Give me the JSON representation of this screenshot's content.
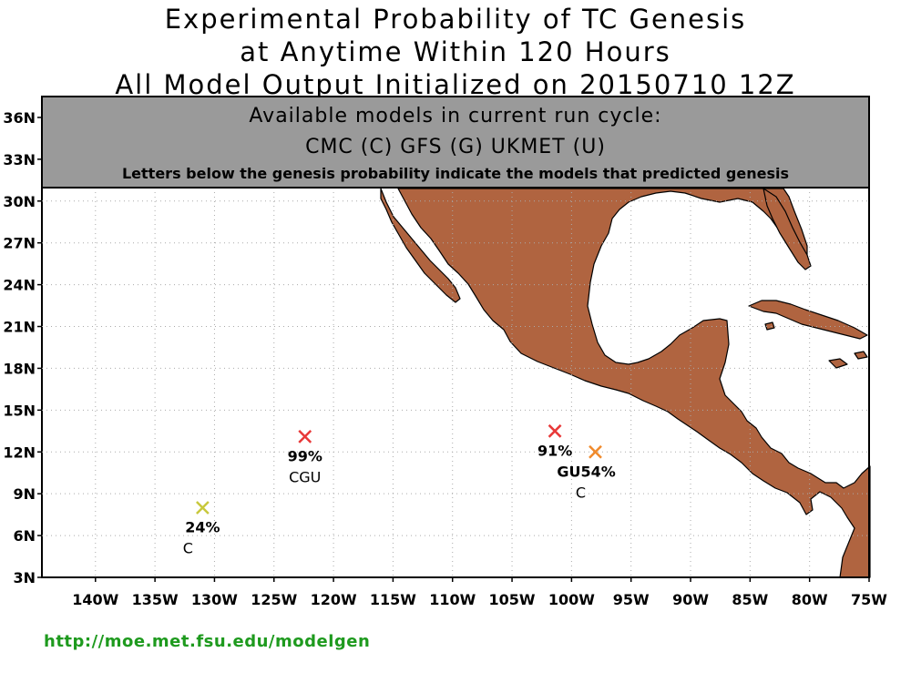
{
  "title": {
    "line1": "Experimental Probability of TC Genesis",
    "line2": "at Anytime Within 120 Hours",
    "line3": "All Model Output Initialized on 20150710 12Z"
  },
  "legend_box": {
    "line1": "Available models in current run cycle:",
    "line2": "CMC (C) GFS (G)  UKMET (U)",
    "line3": "Letters below the genesis probability indicate the models that predicted genesis"
  },
  "axes": {
    "lat_labels": [
      "36N",
      "33N",
      "30N",
      "27N",
      "24N",
      "21N",
      "18N",
      "15N",
      "12N",
      "9N",
      "6N",
      "3N"
    ],
    "lon_labels": [
      "140W",
      "135W",
      "130W",
      "125W",
      "120W",
      "115W",
      "110W",
      "105W",
      "100W",
      "95W",
      "90W",
      "85W",
      "80W",
      "75W"
    ],
    "lon_range": [
      -144.5,
      -75
    ],
    "lat_range": [
      3,
      37.5
    ],
    "grid": true
  },
  "colors": {
    "land": "#b06440",
    "legend_box": "#9a9a9a",
    "url": "#1e9a1e"
  },
  "genesis_points": [
    {
      "lon": -122.4,
      "lat": 13.1,
      "probability": "99%",
      "models": "CGU",
      "color": "#e83838"
    },
    {
      "lon": -101.4,
      "lat": 13.5,
      "probability": "91%",
      "models": "",
      "color": "#e83838"
    },
    {
      "lon": -98.0,
      "lat": 12.0,
      "probability": "54%",
      "models": "C",
      "prefix": "GU",
      "color": "#f08a2c"
    },
    {
      "lon": -131.0,
      "lat": 8.0,
      "probability": "24%",
      "models": "C",
      "color": "#c8c83c"
    }
  ],
  "footer": {
    "url": "http://moe.met.fsu.edu/modelgen"
  }
}
